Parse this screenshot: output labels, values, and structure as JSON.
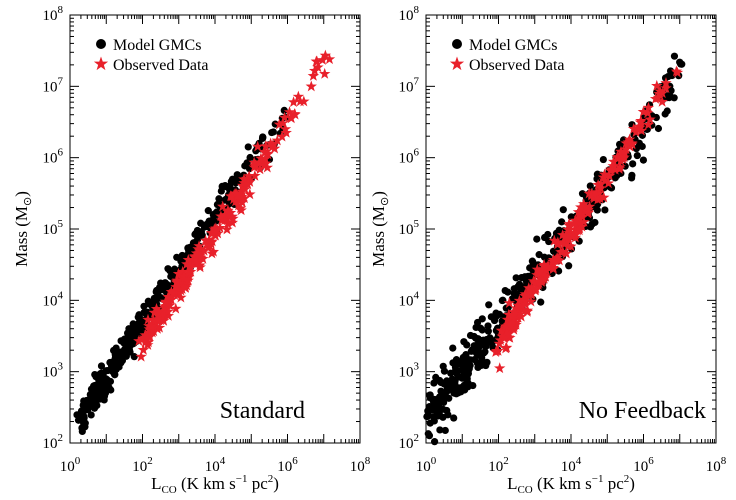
{
  "chart_data": [
    {
      "type": "scatter",
      "panel_label": "Standard",
      "xlabel": "L_CO (K km s^-1 pc^2)",
      "ylabel": "Mass (M_sun)",
      "xscale": "log",
      "yscale": "log",
      "xlim": [
        1,
        100000000
      ],
      "ylim": [
        100,
        100000000
      ],
      "x_ticks": [
        1,
        100,
        10000,
        1000000,
        100000000
      ],
      "y_ticks": [
        100,
        1000,
        10000,
        100000,
        1000000,
        10000000,
        100000000
      ],
      "legend": {
        "placement": "top-left",
        "entries": [
          "Model GMCs",
          "Observed Data"
        ]
      },
      "series": [
        {
          "name": "Model GMCs",
          "marker": "circle",
          "color": "#000000",
          "trend": {
            "log_x_start": 0.3,
            "log_x_end": 6.3,
            "log_y_start": 2.4,
            "log_y_end": 6.9,
            "n": 420,
            "log_scatter": 0.12
          }
        },
        {
          "name": "Observed Data",
          "marker": "star",
          "color": "#e8202a",
          "trend": {
            "log_x_start": 2.0,
            "log_x_end": 7.3,
            "log_y_start": 3.4,
            "log_y_end": 7.5,
            "n": 230,
            "log_scatter": 0.1
          }
        }
      ]
    },
    {
      "type": "scatter",
      "panel_label": "No Feedback",
      "xlabel": "L_CO (K km s^-1 pc^2)",
      "ylabel": "Mass (M_sun)",
      "xscale": "log",
      "yscale": "log",
      "xlim": [
        1,
        100000000
      ],
      "ylim": [
        100,
        100000000
      ],
      "x_ticks": [
        1,
        100,
        10000,
        1000000,
        100000000
      ],
      "y_ticks": [
        100,
        1000,
        10000,
        100000,
        1000000,
        10000000,
        100000000
      ],
      "legend": {
        "placement": "top-left",
        "entries": [
          "Model GMCs",
          "Observed Data"
        ]
      },
      "series": [
        {
          "name": "Model GMCs",
          "marker": "circle",
          "color": "#000000",
          "trend": {
            "log_x_start": 0.0,
            "log_x_end": 7.5,
            "log_y_start": 2.3,
            "log_y_end": 7.4,
            "n": 460,
            "log_scatter": 0.18
          }
        },
        {
          "name": "Observed Data",
          "marker": "star",
          "color": "#e8202a",
          "trend": {
            "log_x_start": 2.0,
            "log_x_end": 7.3,
            "log_y_start": 3.4,
            "log_y_end": 7.5,
            "n": 230,
            "log_scatter": 0.1
          }
        }
      ]
    }
  ],
  "labels": {
    "x_tick_text": [
      "10",
      "10",
      "10",
      "10",
      "10"
    ],
    "x_tick_exp": [
      "0",
      "2",
      "4",
      "6",
      "8"
    ],
    "y_tick_text": [
      "10",
      "10",
      "10",
      "10",
      "10",
      "10",
      "10"
    ],
    "y_tick_exp": [
      "2",
      "3",
      "4",
      "5",
      "6",
      "7",
      "8"
    ],
    "xlabel_main": "L",
    "xlabel_sub": "CO",
    "xlabel_rest": " (K km s",
    "xlabel_exp1": "−1",
    "xlabel_mid": " pc",
    "xlabel_exp2": "2",
    "xlabel_end": ")",
    "ylabel_main": "Mass (M",
    "ylabel_sub": "⊙",
    "ylabel_end": ")",
    "legend_model": "Model GMCs",
    "legend_observed": "Observed Data"
  }
}
